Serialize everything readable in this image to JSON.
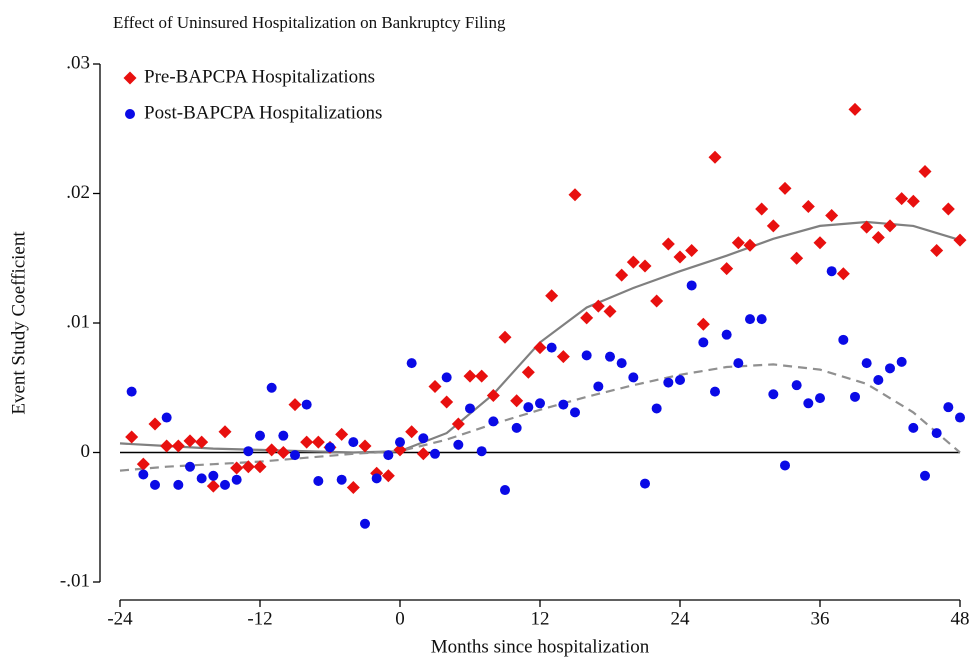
{
  "chart_data": {
    "type": "scatter",
    "title": "Effect of Uninsured Hospitalization on Bankruptcy Filing",
    "xlabel": "Months since hospitalization",
    "ylabel": "Event Study Coefficient",
    "legend": "upper left",
    "reference_line": 0,
    "xlim": [
      -24,
      48
    ],
    "xticks": [
      -24,
      -12,
      0,
      12,
      24,
      36,
      48
    ],
    "ylim": [
      -0.01,
      0.03
    ],
    "yticks": [
      {
        "value": -0.01,
        "label": "-.01"
      },
      {
        "value": 0,
        "label": "0"
      },
      {
        "value": 0.01,
        "label": ".01"
      },
      {
        "value": 0.02,
        "label": ".02"
      },
      {
        "value": 0.03,
        "label": ".03"
      }
    ],
    "x": [
      -23,
      -22,
      -21,
      -20,
      -19,
      -18,
      -17,
      -16,
      -15,
      -14,
      -13,
      -12,
      -11,
      -10,
      -9,
      -8,
      -7,
      -6,
      -5,
      -4,
      -3,
      -2,
      -1,
      0,
      1,
      2,
      3,
      4,
      5,
      6,
      7,
      8,
      9,
      10,
      11,
      12,
      13,
      14,
      15,
      16,
      17,
      18,
      19,
      20,
      21,
      22,
      23,
      24,
      25,
      26,
      27,
      28,
      29,
      30,
      31,
      32,
      33,
      34,
      35,
      36,
      37,
      38,
      39,
      40,
      41,
      42,
      43,
      44,
      45,
      46,
      47,
      48
    ],
    "series": [
      {
        "name": "Pre-BAPCPA Hospitalizations",
        "color": "#e8100f",
        "marker": "diamond",
        "values": [
          0.0012,
          -0.0009,
          0.0022,
          0.0005,
          0.0005,
          0.0009,
          0.0008,
          -0.0026,
          0.0016,
          -0.0012,
          -0.0011,
          -0.0011,
          0.0002,
          0.0,
          0.0037,
          0.0008,
          0.0008,
          0.0004,
          0.0014,
          -0.0027,
          0.0005,
          -0.0016,
          -0.0018,
          0.0002,
          0.0016,
          -0.0001,
          0.0051,
          0.0039,
          0.0022,
          0.0059,
          0.0059,
          0.0044,
          0.0089,
          0.004,
          0.0062,
          0.0081,
          0.0121,
          0.0074,
          0.0199,
          0.0104,
          0.0113,
          0.0109,
          0.0137,
          0.0147,
          0.0144,
          0.0117,
          0.0161,
          0.0151,
          0.0156,
          0.0099,
          0.0228,
          0.0142,
          0.0162,
          0.016,
          0.0188,
          0.0175,
          0.0204,
          0.015,
          0.019,
          0.0162,
          0.0183,
          0.0138,
          0.0265,
          0.0174,
          0.0166,
          0.0175,
          0.0196,
          0.0194,
          0.0217,
          0.0156,
          0.0188,
          0.0164
        ]
      },
      {
        "name": "Post-BAPCPA Hospitalizations",
        "color": "#0a0ae6",
        "marker": "circle",
        "values": [
          0.0047,
          -0.0017,
          -0.0025,
          0.0027,
          -0.0025,
          -0.0011,
          -0.002,
          -0.0018,
          -0.0025,
          -0.0021,
          0.0001,
          0.0013,
          0.005,
          0.0013,
          -0.0002,
          0.0037,
          -0.0022,
          0.0004,
          -0.0021,
          0.0008,
          -0.0055,
          -0.002,
          -0.0002,
          0.0008,
          0.0069,
          0.0011,
          -0.0001,
          0.0058,
          0.0006,
          0.0034,
          0.0001,
          0.0024,
          -0.0029,
          0.0019,
          0.0035,
          0.0038,
          0.0081,
          0.0037,
          0.0031,
          0.0075,
          0.0051,
          0.0074,
          0.0069,
          0.0058,
          -0.0024,
          0.0034,
          0.0054,
          0.0056,
          0.0129,
          0.0085,
          0.0047,
          0.0091,
          0.0069,
          0.0103,
          0.0103,
          0.0045,
          -0.001,
          0.0052,
          0.0038,
          0.0042,
          0.014,
          0.0087,
          0.0043,
          0.0069,
          0.0056,
          0.0065,
          0.007,
          0.0019,
          -0.0018,
          0.0015,
          0.0035,
          0.0027
        ]
      }
    ],
    "fits": [
      {
        "color": "#808080",
        "dash": false,
        "x": [
          -24,
          -20,
          -16,
          -12,
          -8,
          -4,
          0,
          4,
          8,
          12,
          16,
          20,
          24,
          28,
          32,
          36,
          40,
          44,
          48
        ],
        "values": [
          0.0007,
          0.0005,
          0.0003,
          0.0002,
          0.0001,
          0.0,
          0.0001,
          0.0015,
          0.0045,
          0.0085,
          0.0112,
          0.0127,
          0.014,
          0.0152,
          0.0165,
          0.0175,
          0.0178,
          0.0175,
          0.0164
        ]
      },
      {
        "color": "#909090",
        "dash": true,
        "x": [
          -24,
          -20,
          -16,
          -12,
          -8,
          -4,
          0,
          4,
          8,
          12,
          16,
          20,
          24,
          28,
          32,
          36,
          40,
          44,
          48
        ],
        "values": [
          -0.0014,
          -0.0011,
          -0.0009,
          -0.0007,
          -0.0004,
          -0.0001,
          0.0001,
          0.001,
          0.0022,
          0.0033,
          0.0043,
          0.0052,
          0.006,
          0.0066,
          0.0068,
          0.0064,
          0.0053,
          0.0031,
          0.0
        ]
      }
    ]
  }
}
